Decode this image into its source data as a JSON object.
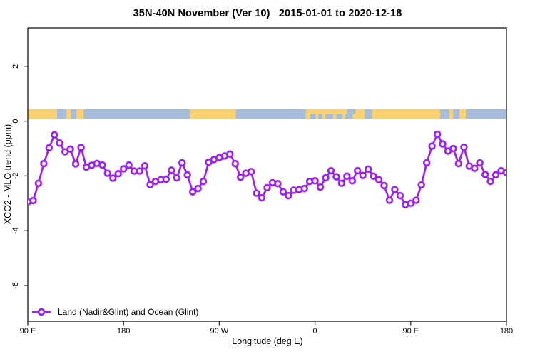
{
  "title": "35N-40N November (Ver 10)   2015-01-01 to 2020-12-18",
  "axes": {
    "x_label": "Longitude (deg E)",
    "y_label": "XCO2 - MLO trend (ppm)"
  },
  "legend": {
    "label": "Land (Nadir&Glint) and Ocean (Glint)"
  },
  "colors": {
    "line": "#A020F0",
    "marker_fill": "#ffffff",
    "land": "#FAD271",
    "ocean": "#A6BDDB",
    "axis": "#262626",
    "text": "#000000"
  },
  "chart_data": {
    "type": "line",
    "title": "35N-40N November (Ver 10)   2015-01-01 to 2020-12-18",
    "xlabel": "Longitude (deg E)",
    "ylabel": "XCO2 - MLO trend (ppm)",
    "grid": false,
    "legend_position": "bottom-left-inside",
    "xlim": [
      90,
      540
    ],
    "ylim": [
      -7.3,
      3.4
    ],
    "x_ticks": [
      {
        "value": 90,
        "label": "90 E"
      },
      {
        "value": 180,
        "label": "180"
      },
      {
        "value": 270,
        "label": "90 W"
      },
      {
        "value": 360,
        "label": "0"
      },
      {
        "value": 450,
        "label": "90 E"
      },
      {
        "value": 540,
        "label": "180"
      }
    ],
    "y_ticks": [
      {
        "value": 2,
        "label": "2"
      },
      {
        "value": 0,
        "label": "0"
      },
      {
        "value": -2,
        "label": "-2"
      },
      {
        "value": -4,
        "label": "-4"
      },
      {
        "value": -6,
        "label": "-6"
      }
    ],
    "land_ocean_band": {
      "y_range_ppm": [
        0.08,
        0.44
      ],
      "land_segments_deg": [
        [
          90,
          117.5
        ],
        [
          126.3,
          130.3
        ],
        [
          135.7,
          142.4
        ],
        [
          242.5,
          285.5
        ],
        [
          351.3,
          477.6
        ],
        [
          486.3,
          489.7
        ],
        [
          495.7,
          501.8
        ]
      ],
      "ocean_patches_deg": [
        {
          "range": [
            355.5,
            360.5
          ],
          "part": "bottom"
        },
        {
          "range": [
            363,
            367
          ],
          "part": "bottom"
        },
        {
          "range": [
            370,
            377
          ],
          "part": "bottom"
        },
        {
          "range": [
            380,
            386
          ],
          "part": "bottom"
        },
        {
          "range": [
            388.5,
            395.5
          ],
          "part": "bottom"
        },
        {
          "range": [
            390,
            398
          ],
          "part": "top"
        },
        {
          "range": [
            406.5,
            413.5
          ],
          "part": "full"
        }
      ]
    },
    "series": [
      {
        "name": "Land (Nadir&Glint) and Ocean (Glint)",
        "x": [
          90,
          95,
          100,
          105,
          110,
          115,
          120,
          125,
          130,
          135,
          140,
          145,
          150,
          155,
          160,
          165,
          170,
          175,
          180,
          185,
          190,
          195,
          200,
          205,
          210,
          215,
          220,
          225,
          230,
          235,
          240,
          245,
          250,
          255,
          260,
          265,
          270,
          275,
          280,
          285,
          290,
          295,
          300,
          305,
          310,
          315,
          320,
          325,
          330,
          335,
          340,
          345,
          350,
          355,
          360,
          365,
          370,
          375,
          380,
          385,
          390,
          395,
          400,
          405,
          410,
          415,
          420,
          425,
          430,
          435,
          440,
          445,
          450,
          455,
          460,
          465,
          470,
          475,
          480,
          485,
          490,
          495,
          500,
          505,
          510,
          515,
          520,
          525,
          530,
          535,
          540
        ],
        "values": [
          -2.95,
          -2.9,
          -2.27,
          -1.55,
          -0.97,
          -0.5,
          -0.8,
          -1.12,
          -1.02,
          -1.56,
          -0.96,
          -1.68,
          -1.61,
          -1.54,
          -1.6,
          -1.9,
          -2.08,
          -1.92,
          -1.74,
          -1.6,
          -1.82,
          -1.82,
          -1.63,
          -2.32,
          -2.2,
          -2.14,
          -2.12,
          -1.79,
          -2.07,
          -1.52,
          -1.96,
          -2.58,
          -2.46,
          -2.2,
          -1.5,
          -1.4,
          -1.33,
          -1.27,
          -1.2,
          -1.55,
          -2.05,
          -1.9,
          -1.84,
          -2.63,
          -2.8,
          -2.43,
          -2.25,
          -2.28,
          -2.58,
          -2.72,
          -2.52,
          -2.5,
          -2.46,
          -2.2,
          -2.18,
          -2.41,
          -2.07,
          -1.81,
          -2.03,
          -2.27,
          -2.01,
          -2.18,
          -1.81,
          -1.98,
          -1.75,
          -2.01,
          -2.14,
          -2.35,
          -2.89,
          -2.5,
          -2.72,
          -3.05,
          -3.0,
          -2.89,
          -2.33,
          -1.52,
          -0.91,
          -0.48,
          -0.83,
          -1.09,
          -1.0,
          -1.55,
          -0.95,
          -1.64,
          -1.72,
          -1.52,
          -1.95,
          -2.2,
          -1.96,
          -1.81,
          -1.88
        ]
      }
    ]
  }
}
